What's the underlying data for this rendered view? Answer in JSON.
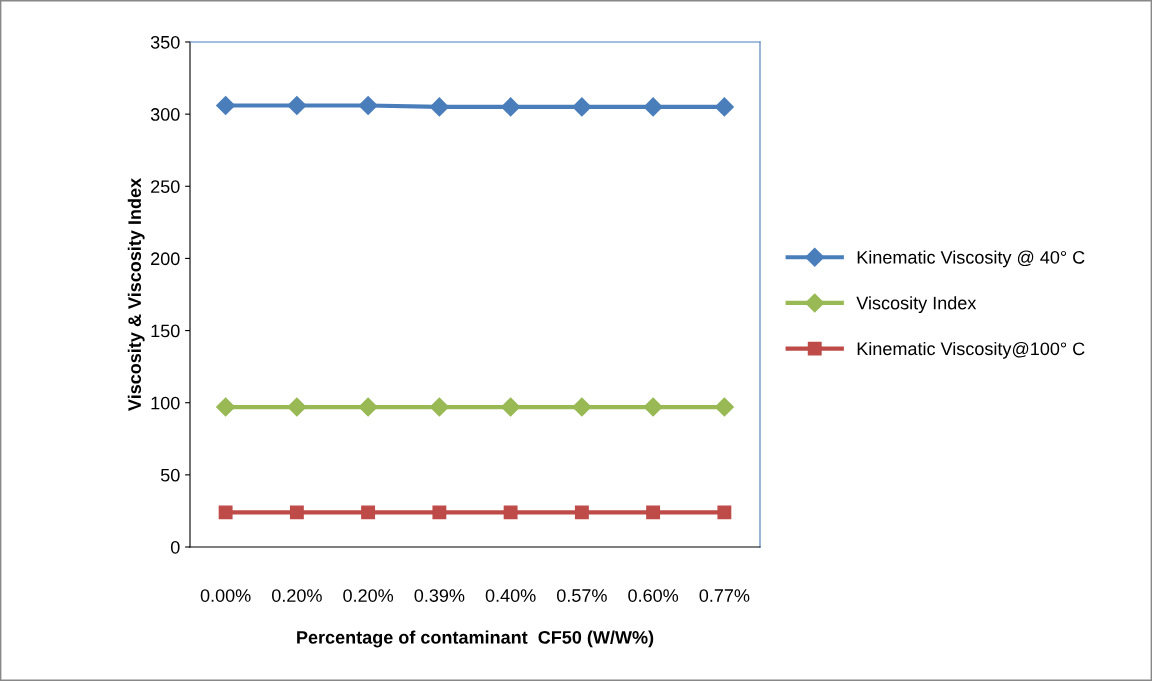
{
  "chart_data": {
    "type": "line",
    "xlabel": "Percentage of contaminant  CF50 (W/W%)",
    "ylabel": "Viscosity & Viscosity Index",
    "categories": [
      "0.00%",
      "0.20%",
      "0.20%",
      "0.39%",
      "0.40%",
      "0.57%",
      "0.60%",
      "0.77%"
    ],
    "series": [
      {
        "name": "Kinematic Viscosity @ 40° C",
        "color": "#4a7ebb",
        "marker": "diamond",
        "values": [
          306,
          306,
          306,
          305,
          305,
          305,
          305,
          305
        ]
      },
      {
        "name": "Viscosity Index",
        "color": "#98b954",
        "marker": "diamond",
        "values": [
          97,
          97,
          97,
          97,
          97,
          97,
          97,
          97
        ]
      },
      {
        "name": "Kinematic Viscosity@100° C",
        "color": "#be4b48",
        "marker": "square",
        "values": [
          24,
          24,
          24,
          24,
          24,
          24,
          24,
          24
        ]
      }
    ],
    "ylim": [
      0,
      350
    ],
    "yticks": [
      0,
      50,
      100,
      150,
      200,
      250,
      300,
      350
    ],
    "grid": false,
    "legend": "right",
    "line_style": "solid"
  }
}
